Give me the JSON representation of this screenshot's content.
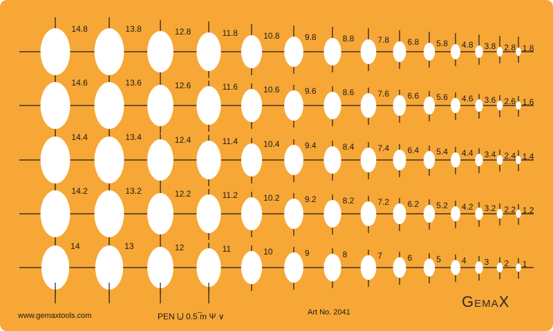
{
  "template": {
    "rows": [
      [
        "14.8",
        "13.8",
        "12.8",
        "11.8",
        "10.8",
        "9.8",
        "8.8",
        "7.8",
        "6.8",
        "5.8",
        "4.8",
        "3.8",
        "2.8",
        "1.8"
      ],
      [
        "14.6",
        "13.6",
        "12.6",
        "11.6",
        "10.6",
        "9.6",
        "8.6",
        "7.6",
        "6.6",
        "5.6",
        "4.6",
        "3.6",
        "2.6",
        "1.6"
      ],
      [
        "14.4",
        "13.4",
        "12.4",
        "11.4",
        "10.4",
        "9.4",
        "8.4",
        "7.4",
        "6.4",
        "5.4",
        "4.4",
        "3.4",
        "2.4",
        "1.4"
      ],
      [
        "14.2",
        "13.2",
        "12.2",
        "11.2",
        "10.2",
        "9.2",
        "8.2",
        "7.2",
        "6.2",
        "5.2",
        "4.2",
        "3.2",
        "2.2",
        "1.2"
      ],
      [
        "14",
        "13",
        "12",
        "11",
        "10",
        "9",
        "8",
        "7",
        "6",
        "5",
        "4",
        "3",
        "2",
        "1"
      ]
    ],
    "colors": {
      "stencil": "#f7a736",
      "cutout": "#ffffff",
      "lines": "#1a1a1a"
    }
  },
  "footer": {
    "website": "www.gemaxtools.com",
    "pen": "PEN ⨃ 0.5 ̅m Ψ ∨",
    "art_no": "Art No. 2041",
    "logo": "GEMAX"
  }
}
